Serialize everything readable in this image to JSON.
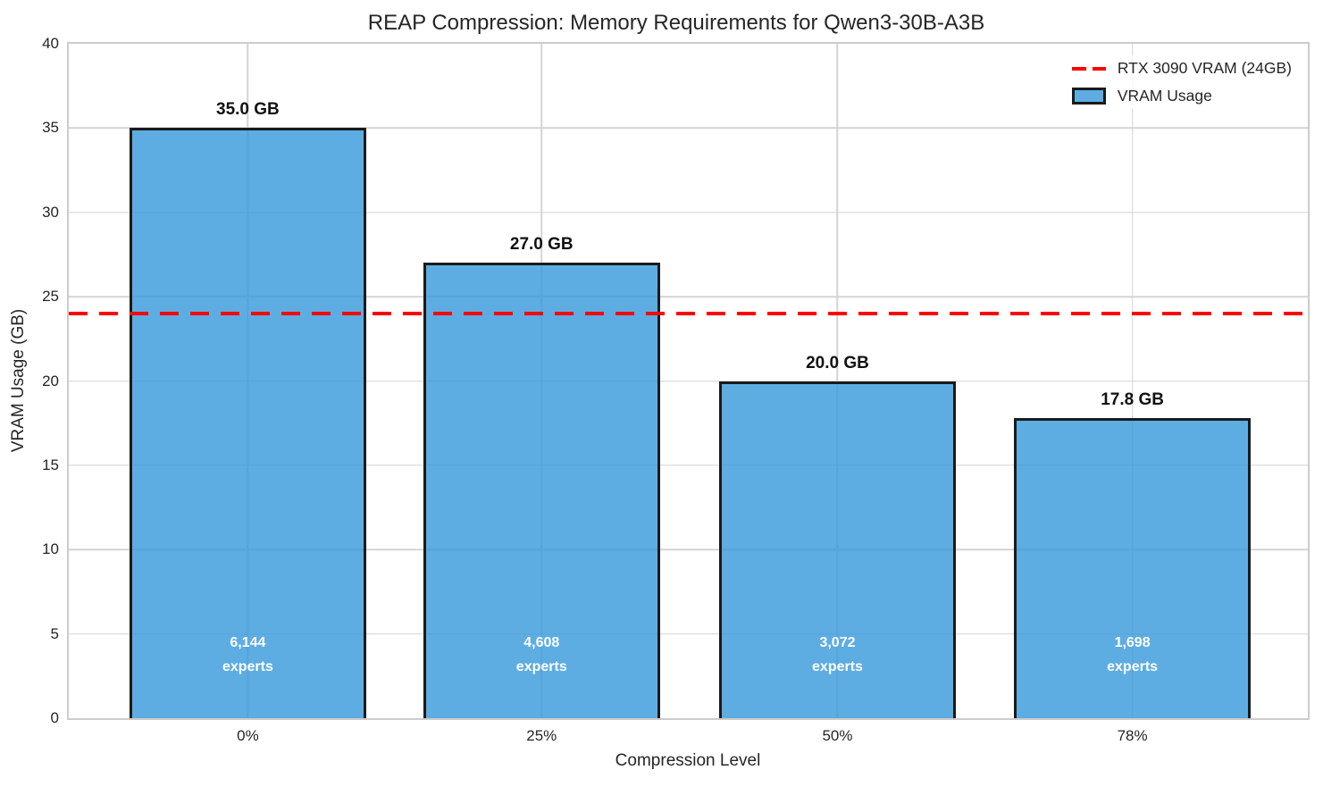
{
  "chart_data": {
    "type": "bar",
    "title": "REAP Compression: Memory Requirements for Qwen3-30B-A3B",
    "xlabel": "Compression Level",
    "ylabel": "VRAM Usage (GB)",
    "categories": [
      "0%",
      "25%",
      "50%",
      "78%"
    ],
    "values": [
      35.0,
      27.0,
      20.0,
      17.8
    ],
    "value_labels": [
      "35.0 GB",
      "27.0 GB",
      "20.0 GB",
      "17.8 GB"
    ],
    "expert_counts": [
      "6,144",
      "4,608",
      "3,072",
      "1,698"
    ],
    "expert_suffix": "experts",
    "ylim": [
      0,
      40
    ],
    "yticks": [
      0,
      5,
      10,
      15,
      20,
      25,
      30,
      35,
      40
    ],
    "grid": true,
    "reference_line": {
      "value": 24,
      "label": "RTX 3090 VRAM (24GB)",
      "color": "#ff0000",
      "style": "dashed"
    },
    "legend": {
      "position": "upper right",
      "items": [
        {
          "label": "RTX 3090 VRAM (24GB)",
          "swatch": "red-dashed-line"
        },
        {
          "label": "VRAM Usage",
          "swatch": "blue-bar"
        }
      ]
    },
    "colors": {
      "bar_fill": "#3498db",
      "bar_fill_opacity": 0.8,
      "bar_edge": "#1a1a1a",
      "grid_line": "#d4d4d4",
      "reference": "#ff0000",
      "text": "#262626",
      "in_bar_text": "#ffffff"
    }
  }
}
